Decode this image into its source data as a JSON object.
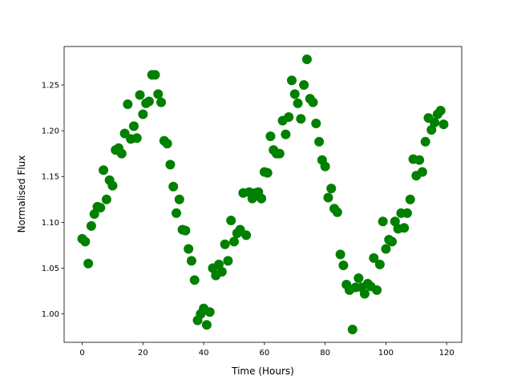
{
  "chart_data": {
    "type": "scatter",
    "title": "",
    "xlabel": "Time (Hours)",
    "ylabel": "Normalised Flux",
    "xlim": [
      -5.95,
      124.95
    ],
    "ylim": [
      0.969,
      1.292
    ],
    "xticks": [
      0,
      20,
      40,
      60,
      80,
      100,
      120
    ],
    "xtick_labels": [
      "0",
      "20",
      "40",
      "60",
      "80",
      "100",
      "120"
    ],
    "yticks": [
      1.0,
      1.05,
      1.1,
      1.15,
      1.2,
      1.25
    ],
    "ytick_labels": [
      "1.00",
      "1.05",
      "1.10",
      "1.15",
      "1.20",
      "1.25"
    ],
    "grid": false,
    "marker_color": "#008000",
    "x": [
      0,
      1,
      2,
      3,
      4,
      5,
      6,
      7,
      8,
      9,
      10,
      11,
      12,
      13,
      14,
      15,
      16,
      17,
      18,
      19,
      20,
      21,
      22,
      23,
      24,
      25,
      26,
      27,
      28,
      29,
      30,
      31,
      32,
      33,
      34,
      35,
      36,
      37,
      38,
      39,
      40,
      41,
      42,
      43,
      44,
      45,
      46,
      47,
      48,
      49,
      50,
      51,
      52,
      53,
      54,
      55,
      56,
      57,
      58,
      59,
      60,
      61,
      62,
      63,
      64,
      65,
      66,
      67,
      68,
      69,
      70,
      71,
      72,
      73,
      74,
      75,
      76,
      77,
      78,
      79,
      80,
      81,
      82,
      83,
      84,
      85,
      86,
      87,
      88,
      89,
      90,
      91,
      92,
      93,
      94,
      95,
      96,
      97,
      98,
      99,
      100,
      101,
      102,
      103,
      104,
      105,
      106,
      107,
      108,
      109,
      110,
      111,
      112,
      113,
      114,
      115,
      116,
      117,
      118,
      119
    ],
    "y": [
      1.082,
      1.079,
      1.055,
      1.096,
      1.109,
      1.117,
      1.116,
      1.157,
      1.125,
      1.146,
      1.14,
      1.179,
      1.181,
      1.175,
      1.197,
      1.229,
      1.191,
      1.205,
      1.192,
      1.239,
      1.218,
      1.23,
      1.232,
      1.261,
      1.261,
      1.24,
      1.231,
      1.189,
      1.186,
      1.163,
      1.139,
      1.11,
      1.125,
      1.092,
      1.091,
      1.071,
      1.058,
      1.037,
      0.993,
      1.0,
      1.006,
      0.988,
      1.002,
      1.05,
      1.042,
      1.054,
      1.046,
      1.076,
      1.058,
      1.102,
      1.079,
      1.088,
      1.092,
      1.132,
      1.086,
      1.133,
      1.126,
      1.132,
      1.133,
      1.126,
      1.155,
      1.154,
      1.194,
      1.179,
      1.175,
      1.175,
      1.211,
      1.196,
      1.215,
      1.255,
      1.24,
      1.23,
      1.213,
      1.25,
      1.278,
      1.235,
      1.231,
      1.208,
      1.188,
      1.168,
      1.161,
      1.127,
      1.137,
      1.115,
      1.111,
      1.065,
      1.053,
      1.032,
      1.026,
      0.983,
      1.029,
      1.039,
      1.029,
      1.022,
      1.033,
      1.03,
      1.061,
      1.026,
      1.054,
      1.101,
      1.071,
      1.081,
      1.079,
      1.101,
      1.093,
      1.11,
      1.094,
      1.11,
      1.125,
      1.169,
      1.151,
      1.168,
      1.155,
      1.188,
      1.214,
      1.201,
      1.209,
      1.218,
      1.222,
      1.207
    ]
  }
}
